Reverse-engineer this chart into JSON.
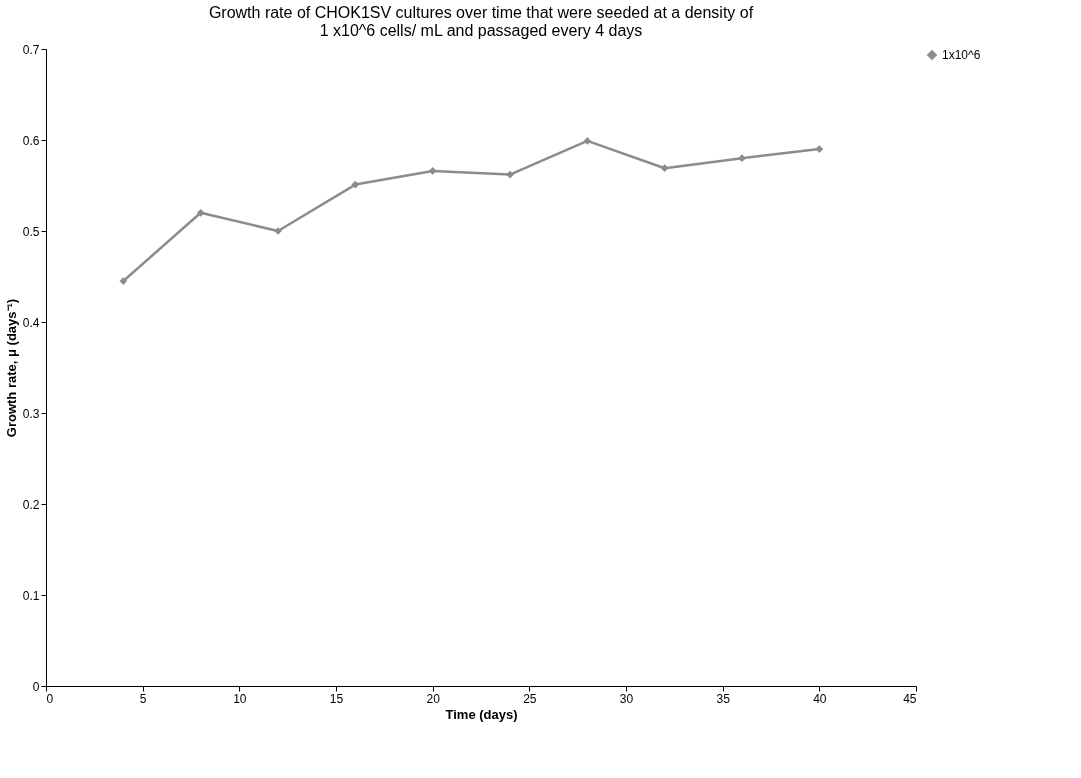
{
  "chart_data": {
    "type": "line",
    "title": "Growth rate of CHOK1SV cultures over time that were seeded at a density of\n1 x10^6 cells/ mL and passaged every 4 days",
    "xlabel": "Time (days)",
    "ylabel": "Growth rate, μ (days⁻¹)",
    "x": [
      4,
      8,
      12,
      16,
      20,
      24,
      28,
      32,
      36,
      40
    ],
    "series": [
      {
        "name": "1x10^6",
        "color": "#8c8c8c",
        "values": [
          0.445,
          0.52,
          0.5,
          0.551,
          0.566,
          0.562,
          0.599,
          0.569,
          0.58,
          0.59
        ]
      }
    ],
    "xlim": [
      0,
      45
    ],
    "xticks": [
      0,
      5,
      10,
      15,
      20,
      25,
      30,
      35,
      40,
      45
    ],
    "ylim": [
      0,
      0.7
    ],
    "yticks": [
      0,
      0.1,
      0.2,
      0.3,
      0.4,
      0.5,
      0.6,
      0.7
    ],
    "grid": false,
    "legend": "right",
    "marker": "diamond",
    "line_style": "solid"
  }
}
